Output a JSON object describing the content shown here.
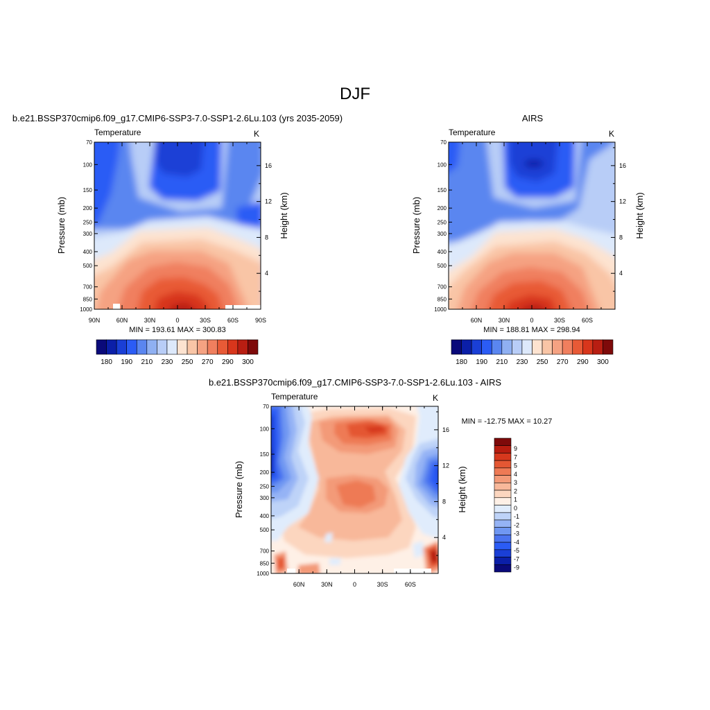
{
  "page_title": "DJF",
  "colors": {
    "temperature_scale": [
      "#0a0a7a",
      "#0b1fa8",
      "#1a3fd6",
      "#2b5cf5",
      "#5a86f0",
      "#8fb0f2",
      "#b8cdf7",
      "#dde9fb",
      "#fde3d0",
      "#f9c5a6",
      "#f5a282",
      "#f07f5e",
      "#e85a36",
      "#d8361c",
      "#b81e12",
      "#7e0a0a"
    ],
    "difference_scale": [
      "#0a0a7a",
      "#0b1fa8",
      "#1a3fd6",
      "#2b5cf5",
      "#4a73ef",
      "#6f97f2",
      "#95b3f5",
      "#bed3f8",
      "#e0ecfc",
      "#fef0e6",
      "#fcd6bf",
      "#f8b89a",
      "#f39a78",
      "#ee7a55",
      "#e45733",
      "#d6381d",
      "#b71d10",
      "#7e0a0a"
    ]
  },
  "chart_data": [
    {
      "type": "heatmap",
      "title": "b.e21.BSSP370cmip6.f09_g17.CMIP6-SSP3-7.0-SSP1-2.6Lu.103 (yrs 2035-2059)",
      "left_string": "Temperature",
      "right_string": "K",
      "ylabel": "Pressure (mb)",
      "y2label": "Height (km)",
      "x_ticks": [
        "90N",
        "60N",
        "30N",
        "0",
        "30S",
        "60S",
        "90S"
      ],
      "x_tick_lats": [
        90,
        60,
        30,
        0,
        -30,
        -60,
        -90
      ],
      "xlim": [
        90,
        -90
      ],
      "y_ticks": [
        "70",
        "100",
        "150",
        "200",
        "250",
        "300",
        "400",
        "500",
        "700",
        "850",
        "1000"
      ],
      "y_tick_values": [
        70,
        100,
        150,
        200,
        250,
        300,
        400,
        500,
        700,
        850,
        1000
      ],
      "ylim": [
        1000,
        70
      ],
      "y_scale": "log",
      "y2_ticks": [
        "4",
        "8",
        "12",
        "16"
      ],
      "y2_tick_values": [
        4,
        8,
        12,
        16
      ],
      "stats": "MIN = 193.61  MAX = 300.83",
      "min": 193.61,
      "max": 300.83,
      "colorbar": {
        "orientation": "horizontal",
        "labels": [
          "180",
          "190",
          "210",
          "230",
          "250",
          "270",
          "290",
          "300"
        ]
      }
    },
    {
      "type": "heatmap",
      "title": "AIRS",
      "left_string": "Temperature",
      "right_string": "K",
      "ylabel": "Pressure (mb)",
      "y2label": "Height (km)",
      "x_ticks": [
        "60N",
        "30N",
        "0",
        "30S",
        "60S"
      ],
      "x_tick_lats": [
        60,
        30,
        0,
        -30,
        -60
      ],
      "xlim": [
        90,
        -90
      ],
      "y_ticks": [
        "70",
        "100",
        "150",
        "200",
        "250",
        "300",
        "400",
        "500",
        "700",
        "850",
        "1000"
      ],
      "y_tick_values": [
        70,
        100,
        150,
        200,
        250,
        300,
        400,
        500,
        700,
        850,
        1000
      ],
      "ylim": [
        1000,
        70
      ],
      "y_scale": "log",
      "y2_ticks": [
        "4",
        "8",
        "12",
        "16"
      ],
      "y2_tick_values": [
        4,
        8,
        12,
        16
      ],
      "stats": "MIN = 188.81  MAX = 298.94",
      "min": 188.81,
      "max": 298.94,
      "colorbar": {
        "orientation": "horizontal",
        "labels": [
          "180",
          "190",
          "210",
          "230",
          "250",
          "270",
          "290",
          "300"
        ]
      }
    },
    {
      "type": "heatmap",
      "title": "b.e21.BSSP370cmip6.f09_g17.CMIP6-SSP3-7.0-SSP1-2.6Lu.103 - AIRS",
      "left_string": "Temperature",
      "right_string": "K",
      "ylabel": "Pressure (mb)",
      "y2label": "Height (km)",
      "x_ticks": [
        "60N",
        "30N",
        "0",
        "30S",
        "60S"
      ],
      "x_tick_lats": [
        60,
        30,
        0,
        -30,
        -60
      ],
      "xlim": [
        90,
        -90
      ],
      "y_ticks": [
        "70",
        "100",
        "150",
        "200",
        "250",
        "300",
        "400",
        "500",
        "700",
        "850",
        "1000"
      ],
      "y_tick_values": [
        70,
        100,
        150,
        200,
        250,
        300,
        400,
        500,
        700,
        850,
        1000
      ],
      "ylim": [
        1000,
        70
      ],
      "y_scale": "log",
      "y2_ticks": [
        "4",
        "8",
        "12",
        "16"
      ],
      "y2_tick_values": [
        4,
        8,
        12,
        16
      ],
      "stats": "MIN = -12.75  MAX =  10.27",
      "min": -12.75,
      "max": 10.27,
      "colorbar": {
        "orientation": "vertical",
        "labels": [
          "9",
          "7",
          "5",
          "4",
          "3",
          "2",
          "1",
          "0",
          "-1",
          "-2",
          "-3",
          "-4",
          "-5",
          "-7",
          "-9"
        ]
      }
    }
  ]
}
